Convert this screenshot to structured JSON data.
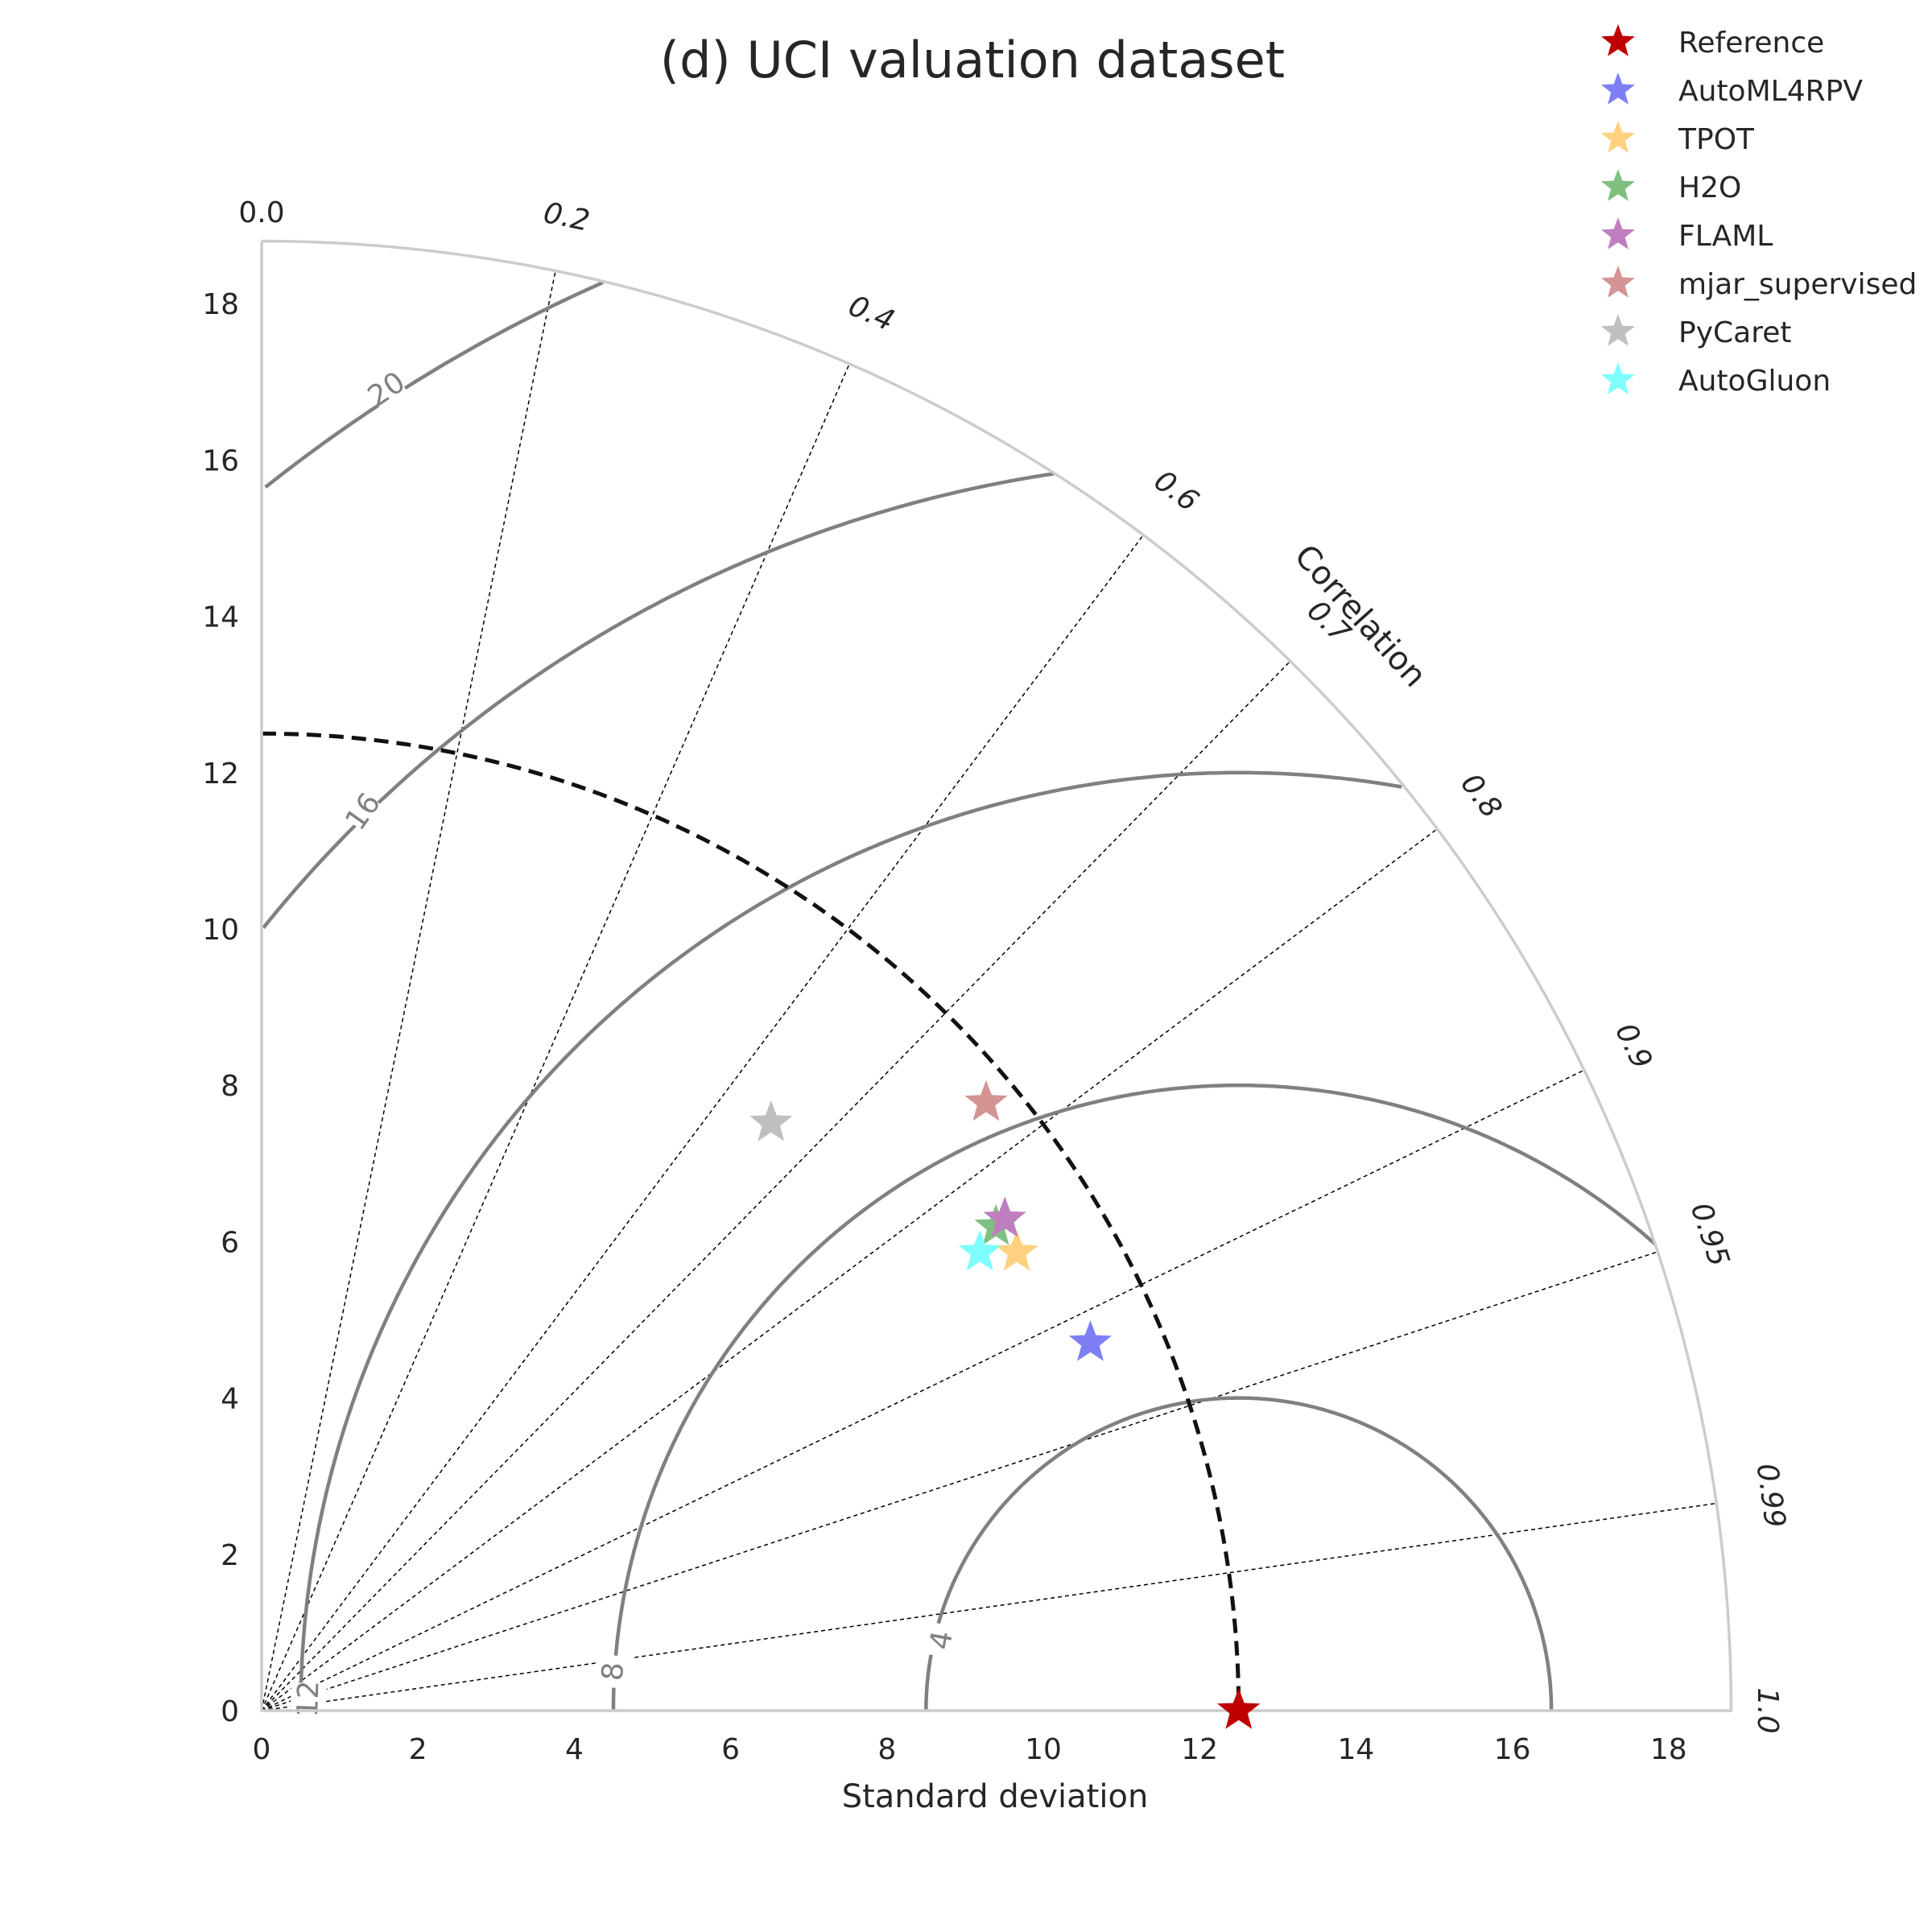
{
  "chart_data": {
    "type": "scatter",
    "subtype": "taylor-diagram",
    "title": "(d) UCI valuation dataset",
    "xlabel": "Standard deviation",
    "corr_axis_label": "Correlation",
    "std_max": 18.8,
    "std_ticks": [
      0,
      2,
      4,
      6,
      8,
      10,
      12,
      14,
      16,
      18
    ],
    "corr_ticks": [
      {
        "value": 0.0,
        "label": "0.0"
      },
      {
        "value": 0.2,
        "label": "0.2"
      },
      {
        "value": 0.4,
        "label": "0.4"
      },
      {
        "value": 0.6,
        "label": "0.6"
      },
      {
        "value": 0.7,
        "label": "0.7"
      },
      {
        "value": 0.8,
        "label": "0.8"
      },
      {
        "value": 0.9,
        "label": "0.9"
      },
      {
        "value": 0.95,
        "label": "0.95"
      },
      {
        "value": 0.99,
        "label": "0.99"
      },
      {
        "value": 1.0,
        "label": "1.0"
      }
    ],
    "reference_std": 12.5,
    "rms_contours": [
      {
        "value": 4,
        "label": "4"
      },
      {
        "value": 8,
        "label": "8"
      },
      {
        "value": 12,
        "label": "12"
      },
      {
        "value": 16,
        "label": "16"
      },
      {
        "value": 20,
        "label": "20"
      }
    ],
    "series": [
      {
        "name": "Reference",
        "color": "#c00000",
        "std": 12.5,
        "corr": 1.0
      },
      {
        "name": "AutoML4RPV",
        "color": "#7f7ff5",
        "std": 11.6,
        "corr": 0.914
      },
      {
        "name": "TPOT",
        "color": "#fdd17f",
        "std": 11.3,
        "corr": 0.855
      },
      {
        "name": "H2O",
        "color": "#7fbf7f",
        "std": 11.25,
        "corr": 0.835
      },
      {
        "name": "FLAML",
        "color": "#bf7fbf",
        "std": 11.4,
        "corr": 0.834
      },
      {
        "name": "mjar_supervised",
        "color": "#d49494",
        "std": 12.1,
        "corr": 0.766
      },
      {
        "name": "PyCaret",
        "color": "#bfbfbf",
        "std": 9.95,
        "corr": 0.655
      },
      {
        "name": "AutoGluon",
        "color": "#7ffdfd",
        "std": 10.9,
        "corr": 0.843
      }
    ],
    "grid": true,
    "legend_position": "top-right"
  }
}
